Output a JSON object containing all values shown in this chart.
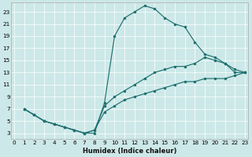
{
  "xlabel": "Humidex (Indice chaleur)",
  "bg_color": "#cde8e8",
  "line_color": "#1e7070",
  "xlim": [
    -0.3,
    23.3
  ],
  "ylim": [
    2.0,
    24.5
  ],
  "xticks": [
    0,
    1,
    2,
    3,
    4,
    5,
    6,
    7,
    8,
    9,
    10,
    11,
    12,
    13,
    14,
    15,
    16,
    17,
    18,
    19,
    20,
    21,
    22,
    23
  ],
  "yticks": [
    3,
    5,
    7,
    9,
    11,
    13,
    15,
    17,
    19,
    21,
    23
  ],
  "line1_x": [
    1,
    2,
    3,
    4,
    5,
    6,
    7,
    8,
    9,
    10,
    11,
    12,
    13,
    14,
    15,
    16,
    17,
    18,
    19,
    20,
    21,
    22,
    23
  ],
  "line1_y": [
    7,
    6,
    5,
    4.5,
    4,
    3.5,
    3,
    3,
    8,
    19,
    22,
    23,
    24,
    23.5,
    22,
    21,
    20.5,
    18,
    16,
    15.5,
    14.5,
    13,
    13
  ],
  "line2_x": [
    1,
    2,
    3,
    4,
    5,
    6,
    7,
    8,
    9,
    10,
    11,
    12,
    13,
    14,
    15,
    16,
    17,
    18,
    19,
    20,
    21,
    22,
    23
  ],
  "line2_y": [
    7,
    6,
    5,
    4.5,
    4,
    3.5,
    3,
    3.5,
    7.5,
    9,
    10,
    11,
    12,
    13,
    13.5,
    14,
    14,
    14.5,
    15.5,
    15,
    14.5,
    13.5,
    13
  ],
  "line3_x": [
    1,
    2,
    3,
    4,
    5,
    6,
    7,
    8,
    9,
    10,
    11,
    12,
    13,
    14,
    15,
    16,
    17,
    18,
    19,
    20,
    21,
    22,
    23
  ],
  "line3_y": [
    7,
    6,
    5,
    4.5,
    4,
    3.5,
    3,
    3.5,
    6.5,
    7.5,
    8.5,
    9,
    9.5,
    10,
    10.5,
    11,
    11.5,
    11.5,
    12,
    12,
    12,
    12.5,
    13
  ],
  "grid_color": "#ffffff",
  "xlabel_fontsize": 6.0,
  "tick_fontsize": 5.2,
  "linewidth": 0.85,
  "markersize": 2.2
}
